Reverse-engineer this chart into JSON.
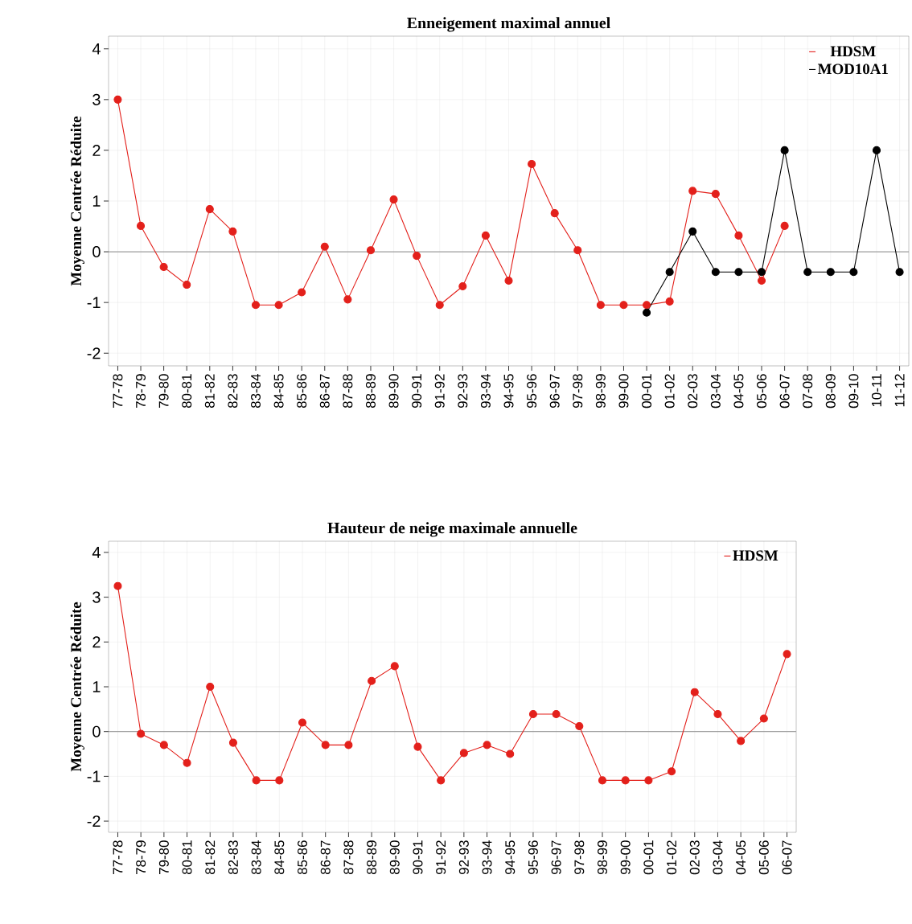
{
  "chart_data": [
    {
      "type": "line",
      "title": "Enneigement maximal annuel",
      "ylabel": "Moyenne Centrée Réduite",
      "categories": [
        "77-78",
        "78-79",
        "79-80",
        "80-81",
        "81-82",
        "82-83",
        "83-84",
        "84-85",
        "85-86",
        "86-87",
        "87-88",
        "88-89",
        "89-90",
        "90-91",
        "91-92",
        "92-93",
        "93-94",
        "94-95",
        "95-96",
        "96-97",
        "97-98",
        "98-99",
        "99-00",
        "00-01",
        "01-02",
        "02-03",
        "03-04",
        "04-05",
        "05-06",
        "06-07",
        "07-08",
        "08-09",
        "09-10",
        "10-11",
        "11-12"
      ],
      "series": [
        {
          "name": "HDSM",
          "color": "#e3201b",
          "values": [
            3.0,
            0.51,
            -0.3,
            -0.65,
            0.84,
            0.4,
            -1.05,
            -1.05,
            -0.8,
            0.1,
            -0.94,
            0.03,
            1.03,
            -0.08,
            -1.05,
            -0.68,
            0.32,
            -0.57,
            1.73,
            0.76,
            0.03,
            -1.05,
            -1.05,
            -1.05,
            -0.98,
            1.2,
            1.14,
            0.32,
            -0.57,
            0.51,
            null,
            null,
            null,
            null,
            null
          ]
        },
        {
          "name": "MOD10A1",
          "color": "#000000",
          "values": [
            null,
            null,
            null,
            null,
            null,
            null,
            null,
            null,
            null,
            null,
            null,
            null,
            null,
            null,
            null,
            null,
            null,
            null,
            null,
            null,
            null,
            null,
            null,
            -1.2,
            -0.4,
            0.4,
            -0.4,
            -0.4,
            -0.4,
            2.0,
            -0.4,
            -0.4,
            -0.4,
            2.0,
            -0.4
          ]
        }
      ],
      "ylim": [
        -2.25,
        4.25
      ],
      "yticks": [
        -2,
        -1,
        0,
        1,
        2,
        3,
        4
      ],
      "grid": true,
      "legend": "top right",
      "marker": "circle",
      "ref_lines": [
        {
          "axis": "y",
          "value": 0,
          "color": "#a0a0a0"
        }
      ]
    },
    {
      "type": "line",
      "title": "Hauteur de neige maximale annuelle",
      "ylabel": "Moyenne Centrée Réduite",
      "categories": [
        "77-78",
        "78-79",
        "79-80",
        "80-81",
        "81-82",
        "82-83",
        "83-84",
        "84-85",
        "85-86",
        "86-87",
        "87-88",
        "88-89",
        "89-90",
        "90-91",
        "91-92",
        "92-93",
        "93-94",
        "94-95",
        "95-96",
        "96-97",
        "97-98",
        "98-99",
        "99-00",
        "00-01",
        "01-02",
        "02-03",
        "03-04",
        "04-05",
        "05-06",
        "06-07"
      ],
      "series": [
        {
          "name": "HDSM",
          "color": "#e3201b",
          "values": [
            3.25,
            -0.05,
            -0.3,
            -0.7,
            1.0,
            -0.25,
            -1.09,
            -1.09,
            0.2,
            -0.3,
            -0.3,
            1.13,
            1.46,
            -0.34,
            -1.09,
            -0.48,
            -0.3,
            -0.5,
            0.39,
            0.39,
            0.12,
            -1.09,
            -1.09,
            -1.09,
            -0.89,
            0.88,
            0.39,
            -0.21,
            0.29,
            1.73
          ]
        }
      ],
      "ylim": [
        -2.25,
        4.25
      ],
      "yticks": [
        -2,
        -1,
        0,
        1,
        2,
        3,
        4
      ],
      "grid": true,
      "legend": "top right",
      "marker": "circle",
      "ref_lines": [
        {
          "axis": "y",
          "value": 0,
          "color": "#a0a0a0"
        }
      ]
    }
  ]
}
